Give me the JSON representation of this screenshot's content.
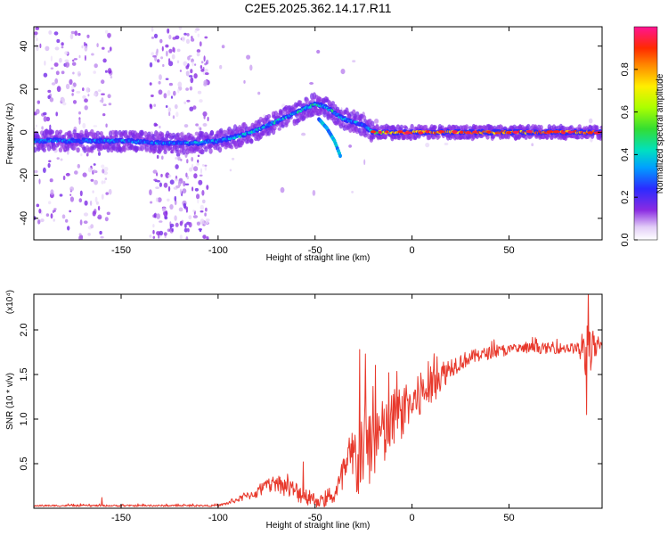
{
  "title": "C2E5.2025.362.14.17.R11",
  "chart_data": [
    {
      "type": "heatmap",
      "name": "spectrogram",
      "xlabel": "Height of straight line (km)",
      "ylabel": "Frequency (Hz)",
      "xlim": [
        -195,
        98
      ],
      "ylim": [
        -50,
        49
      ],
      "xticks": [
        -150,
        -100,
        -50,
        0,
        50
      ],
      "yticks": [
        -40,
        -20,
        0,
        20,
        40
      ],
      "colorbar": {
        "label": "Normalized spectral amplitude",
        "range": [
          0,
          1
        ],
        "ticks": [
          0.0,
          0.2,
          0.4,
          0.6,
          0.8
        ],
        "tick_labels": [
          "0.0",
          "0.2",
          "0.4",
          "0.6",
          "0.8"
        ]
      },
      "ridge": {
        "x": [
          -195,
          -170,
          -150,
          -130,
          -110,
          -100,
          -90,
          -80,
          -70,
          -60,
          -50,
          -45,
          -40,
          -35,
          -30,
          -25,
          -20,
          -10,
          0,
          10,
          30,
          50,
          70,
          90,
          96
        ],
        "freq": [
          -4,
          -4,
          -4,
          -5,
          -5,
          -4,
          -2,
          1,
          5,
          9,
          13,
          12,
          9,
          6,
          5,
          3,
          0,
          0,
          0,
          0,
          0,
          0,
          0,
          0,
          0
        ],
        "amplitude": [
          0.3,
          0.3,
          0.3,
          0.3,
          0.3,
          0.3,
          0.35,
          0.35,
          0.35,
          0.35,
          0.45,
          0.4,
          0.4,
          0.4,
          0.3,
          0.3,
          0.5,
          0.75,
          0.8,
          0.8,
          0.8,
          0.8,
          0.85,
          0.85,
          0.95
        ]
      },
      "branch": {
        "x": [
          -48,
          -44,
          -40,
          -37
        ],
        "freq": [
          6,
          2,
          -4,
          -11
        ]
      }
    },
    {
      "type": "line",
      "name": "snr",
      "xlabel": "Height of straight line (km)",
      "ylabel": "SNR (10 * v/v)",
      "y_multiplier": "(x10⁴)",
      "xlim": [
        -195,
        98
      ],
      "ylim": [
        0,
        2.4
      ],
      "xticks": [
        -150,
        -100,
        -50,
        0,
        50
      ],
      "yticks": [
        0.5,
        1.0,
        1.5,
        2.0
      ],
      "ytick_labels": [
        "0.5",
        "1.0",
        "1.5",
        "2.0"
      ],
      "series": [
        {
          "name": "SNR",
          "color": "#e8392c",
          "envelope_x": [
            -195,
            -160,
            -120,
            -100,
            -95,
            -90,
            -80,
            -75,
            -70,
            -65,
            -60,
            -55,
            -50,
            -45,
            -40,
            -36,
            -33,
            -30,
            -28,
            -26,
            -24,
            -22,
            -20,
            -18,
            -15,
            -12,
            -10,
            -8,
            -5,
            -2,
            0,
            3,
            6,
            10,
            15,
            20,
            25,
            30,
            40,
            50,
            60,
            70,
            80,
            85,
            88,
            90,
            92,
            94,
            96,
            98
          ],
          "envelope_y": [
            0.03,
            0.03,
            0.03,
            0.03,
            0.06,
            0.1,
            0.18,
            0.25,
            0.3,
            0.25,
            0.2,
            0.15,
            0.1,
            0.08,
            0.15,
            0.35,
            0.5,
            0.6,
            0.55,
            0.7,
            0.75,
            0.7,
            0.8,
            0.9,
            0.85,
            0.9,
            1.0,
            1.05,
            1.1,
            1.15,
            1.2,
            1.25,
            1.3,
            1.4,
            1.5,
            1.6,
            1.65,
            1.7,
            1.75,
            1.78,
            1.8,
            1.8,
            1.8,
            1.8,
            1.75,
            1.8,
            1.85,
            1.8,
            1.8,
            1.82
          ],
          "noise_x": [
            -195,
            -100,
            -90,
            -80,
            -70,
            -60,
            -50,
            -42,
            -38,
            -35,
            -32,
            -28,
            -25,
            -22,
            -18,
            -15,
            -10,
            -5,
            0,
            5,
            10,
            15,
            20,
            30,
            50,
            70,
            85,
            88,
            90,
            92,
            94,
            96,
            98
          ],
          "noise_y": [
            0.01,
            0.01,
            0.03,
            0.06,
            0.1,
            0.12,
            0.08,
            0.06,
            0.15,
            0.25,
            0.35,
            0.45,
            0.5,
            0.5,
            0.45,
            0.4,
            0.35,
            0.3,
            0.28,
            0.25,
            0.22,
            0.18,
            0.12,
            0.08,
            0.06,
            0.06,
            0.06,
            0.15,
            0.45,
            0.3,
            0.15,
            0.08,
            0.06
          ],
          "peaks": [
            {
              "x": -160,
              "y": 0.12
            },
            {
              "x": -56,
              "y": 0.52
            },
            {
              "x": -27,
              "y": 1.78
            },
            {
              "x": -24,
              "y": 1.73
            },
            {
              "x": -12,
              "y": 1.52
            },
            {
              "x": 13,
              "y": 1.7
            },
            {
              "x": 91,
              "y": 2.45
            },
            {
              "x": 90,
              "y": 1.05
            }
          ]
        }
      ]
    }
  ]
}
